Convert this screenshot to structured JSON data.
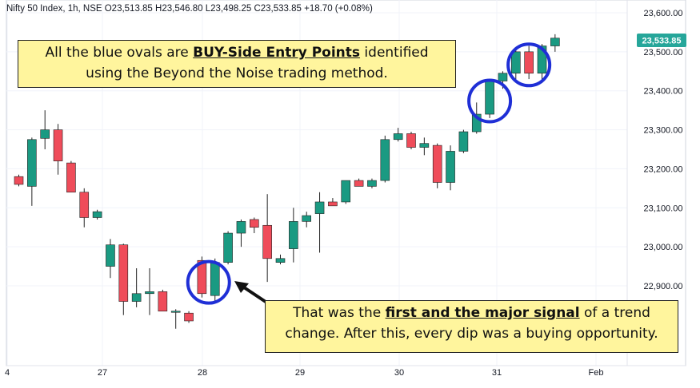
{
  "header": {
    "symbol_line": "Nifty 50 Index, 1h, NSE  O23,513.85  H23,546.80  L23,498.25  C23,533.85  +18.70 (+0.08%)"
  },
  "price_tag": {
    "label": "23,533.85",
    "color": "#26a69a"
  },
  "colors": {
    "up": "#1a9a82",
    "down": "#ef4c5a",
    "oval": "#1f2fd6",
    "callout_bg": "#fff59d"
  },
  "callouts": {
    "top": {
      "pre": "All the blue ovals are ",
      "bold": "BUY-Side Entry Points",
      "post": " identified",
      "line2": "using the Beyond the Noise trading method."
    },
    "bottom": {
      "pre": "That was the ",
      "bold": "first and the  major signal",
      "post": " of a trend",
      "line2": "change. After this, every dip was a buying opportunity."
    }
  },
  "chart_data": {
    "type": "candlestick",
    "y_axis": {
      "range": [
        22750,
        23650
      ],
      "ticks": [
        "23,600.00",
        "23,500.00",
        "23,400.00",
        "23,300.00",
        "23,200.00",
        "23,100.00",
        "23,000.00",
        "22,900.00"
      ],
      "tick_values": [
        23600,
        23500,
        23400,
        23300,
        23200,
        23100,
        23000,
        22900
      ]
    },
    "x_axis": {
      "labels": [
        "4",
        "27",
        "28",
        "29",
        "30",
        "31",
        "Feb"
      ]
    },
    "candles": [
      {
        "o": 23180,
        "h": 23185,
        "l": 23155,
        "c": 23160
      },
      {
        "o": 23155,
        "h": 23280,
        "l": 23105,
        "c": 23275
      },
      {
        "o": 23278,
        "h": 23350,
        "l": 23250,
        "c": 23300
      },
      {
        "o": 23300,
        "h": 23315,
        "l": 23185,
        "c": 23220
      },
      {
        "o": 23215,
        "h": 23220,
        "l": 23140,
        "c": 23140
      },
      {
        "o": 23140,
        "h": 23150,
        "l": 23050,
        "c": 23075
      },
      {
        "o": 23075,
        "h": 23095,
        "l": 23070,
        "c": 23090
      },
      {
        "o": 22950,
        "h": 23020,
        "l": 22920,
        "c": 23005
      },
      {
        "o": 23005,
        "h": 23008,
        "l": 22825,
        "c": 22860
      },
      {
        "o": 22860,
        "h": 22945,
        "l": 22845,
        "c": 22880
      },
      {
        "o": 22880,
        "h": 22945,
        "l": 22825,
        "c": 22885
      },
      {
        "o": 22885,
        "h": 22890,
        "l": 22835,
        "c": 22835
      },
      {
        "o": 22835,
        "h": 22840,
        "l": 22790,
        "c": 22835
      },
      {
        "o": 22830,
        "h": 22835,
        "l": 22805,
        "c": 22810
      },
      {
        "o": 22965,
        "h": 22975,
        "l": 22870,
        "c": 22880
      },
      {
        "o": 22875,
        "h": 22970,
        "l": 22860,
        "c": 22960
      },
      {
        "o": 22960,
        "h": 23040,
        "l": 22955,
        "c": 23035
      },
      {
        "o": 23035,
        "h": 23070,
        "l": 23000,
        "c": 23065
      },
      {
        "o": 23070,
        "h": 23075,
        "l": 23035,
        "c": 23050
      },
      {
        "o": 23055,
        "h": 23135,
        "l": 22910,
        "c": 22970
      },
      {
        "o": 22960,
        "h": 22980,
        "l": 22955,
        "c": 22970
      },
      {
        "o": 22995,
        "h": 23100,
        "l": 22960,
        "c": 23065
      },
      {
        "o": 23065,
        "h": 23090,
        "l": 23050,
        "c": 23080
      },
      {
        "o": 23085,
        "h": 23140,
        "l": 22985,
        "c": 23115
      },
      {
        "o": 23115,
        "h": 23125,
        "l": 23105,
        "c": 23105
      },
      {
        "o": 23115,
        "h": 23170,
        "l": 23110,
        "c": 23170
      },
      {
        "o": 23170,
        "h": 23175,
        "l": 23155,
        "c": 23155
      },
      {
        "o": 23155,
        "h": 23175,
        "l": 23150,
        "c": 23170
      },
      {
        "o": 23170,
        "h": 23285,
        "l": 23165,
        "c": 23275
      },
      {
        "o": 23275,
        "h": 23305,
        "l": 23270,
        "c": 23290
      },
      {
        "o": 23290,
        "h": 23295,
        "l": 23250,
        "c": 23255
      },
      {
        "o": 23255,
        "h": 23280,
        "l": 23235,
        "c": 23265
      },
      {
        "o": 23260,
        "h": 23265,
        "l": 23150,
        "c": 23165
      },
      {
        "o": 23165,
        "h": 23260,
        "l": 23145,
        "c": 23245
      },
      {
        "o": 23245,
        "h": 23300,
        "l": 23240,
        "c": 23295
      },
      {
        "o": 23295,
        "h": 23370,
        "l": 23290,
        "c": 23340
      },
      {
        "o": 23340,
        "h": 23430,
        "l": 23330,
        "c": 23425
      },
      {
        "o": 23425,
        "h": 23450,
        "l": 23405,
        "c": 23445
      },
      {
        "o": 23445,
        "h": 23505,
        "l": 23430,
        "c": 23500
      },
      {
        "o": 23500,
        "h": 23515,
        "l": 23430,
        "c": 23445
      },
      {
        "o": 23445,
        "h": 23520,
        "l": 23420,
        "c": 23515
      },
      {
        "o": 23515,
        "h": 23545,
        "l": 23500,
        "c": 23535
      }
    ],
    "ovals_on_candles": [
      15,
      36,
      39
    ],
    "arrow_to_candle": 15
  }
}
